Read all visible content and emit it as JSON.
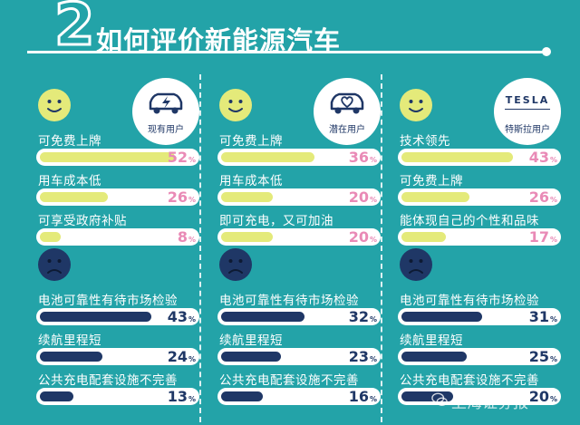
{
  "header": {
    "number": "2",
    "title": "如何评价新能源汽车"
  },
  "colors": {
    "background": "#23a3a8",
    "positive_bar": "#e4ea7a",
    "negative_bar": "#1f3766",
    "positive_value": "#e98ab6",
    "negative_value": "#1f3766"
  },
  "chart_data": {
    "type": "bar",
    "panels": [
      {
        "user_type": "现有用户",
        "icon": "electric-car-icon",
        "positive": [
          {
            "label": "可免费上牌",
            "value": 52
          },
          {
            "label": "用车成本低",
            "value": 26
          },
          {
            "label": "可享受政府补贴",
            "value": 8
          }
        ],
        "negative": [
          {
            "label": "电池可靠性有待市场检验",
            "value": 43
          },
          {
            "label": "续航里程短",
            "value": 24
          },
          {
            "label": "公共充电配套设施不完善",
            "value": 13
          }
        ]
      },
      {
        "user_type": "潜在用户",
        "icon": "heart-car-icon",
        "positive": [
          {
            "label": "可免费上牌",
            "value": 36
          },
          {
            "label": "用车成本低",
            "value": 20
          },
          {
            "label": "即可充电，又可加油",
            "value": 20
          }
        ],
        "negative": [
          {
            "label": "电池可靠性有待市场检验",
            "value": 32
          },
          {
            "label": "续航里程短",
            "value": 23
          },
          {
            "label": "公共充电配套设施不完善",
            "value": 16
          }
        ]
      },
      {
        "user_type": "特斯拉用户",
        "brand": "TESLA",
        "icon": "tesla-logo-icon",
        "positive": [
          {
            "label": "技术领先",
            "value": 43
          },
          {
            "label": "可免费上牌",
            "value": 26
          },
          {
            "label": "能体现自己的个性和品味",
            "value": 17
          }
        ],
        "negative": [
          {
            "label": "电池可靠性有待市场检验",
            "value": 31
          },
          {
            "label": "续航里程短",
            "value": 25
          },
          {
            "label": "公共充电配套设施不完善",
            "value": 20
          }
        ]
      }
    ],
    "unit": "%",
    "value_range": [
      0,
      60
    ]
  },
  "watermark": {
    "text": "上海证券报",
    "icon": "wechat-icon"
  }
}
